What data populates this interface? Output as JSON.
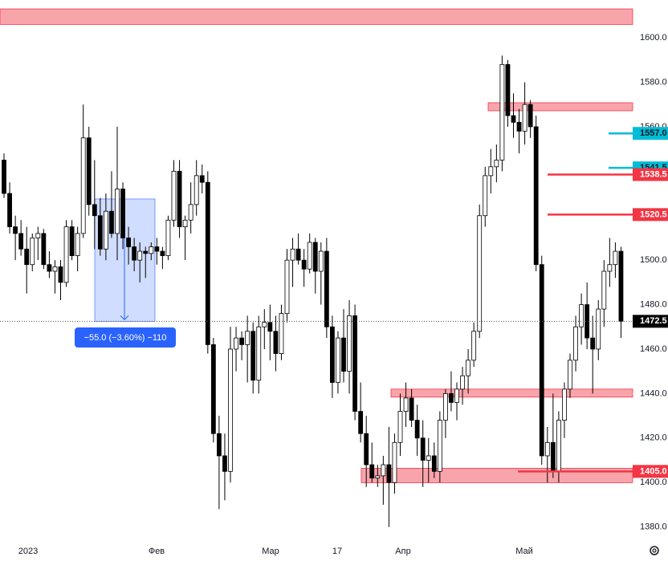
{
  "chart_data": {
    "type": "candlestick",
    "ylim": [
      1373,
      1617
    ],
    "yticks": [
      {
        "value": 1380,
        "label": "1380.0"
      },
      {
        "value": 1400,
        "label": "1400.0"
      },
      {
        "value": 1420,
        "label": "1420.0"
      },
      {
        "value": 1440,
        "label": "1440.0"
      },
      {
        "value": 1460,
        "label": "1460.0"
      },
      {
        "value": 1480,
        "label": "1480.0"
      },
      {
        "value": 1500,
        "label": "1500.0"
      },
      {
        "value": 1520,
        "label": "1520.0"
      },
      {
        "value": 1540,
        "label": "1540.0"
      },
      {
        "value": 1560,
        "label": "1560.0"
      },
      {
        "value": 1580,
        "label": "1580.0"
      },
      {
        "value": 1600,
        "label": "1600.0"
      }
    ],
    "x_labels": [
      "2023",
      "Фев",
      "Мар",
      "17",
      "Апр",
      "Май"
    ],
    "up_color": "#ffffff",
    "down_color": "#000000",
    "candles": [
      [
        1545,
        1548,
        1528,
        1530
      ],
      [
        1530,
        1535,
        1512,
        1515
      ],
      [
        1515,
        1520,
        1500,
        1512
      ],
      [
        1512,
        1518,
        1502,
        1505
      ],
      [
        1505,
        1515,
        1485,
        1498
      ],
      [
        1498,
        1512,
        1495,
        1510
      ],
      [
        1510,
        1515,
        1500,
        1512
      ],
      [
        1512,
        1514,
        1496,
        1498
      ],
      [
        1498,
        1504,
        1492,
        1495
      ],
      [
        1495,
        1500,
        1485,
        1497
      ],
      [
        1497,
        1500,
        1482,
        1490
      ],
      [
        1490,
        1518,
        1488,
        1515
      ],
      [
        1515,
        1518,
        1500,
        1502
      ],
      [
        1502,
        1515,
        1495,
        1512
      ],
      [
        1512,
        1570,
        1510,
        1555
      ],
      [
        1555,
        1560,
        1520,
        1525
      ],
      [
        1525,
        1545,
        1505,
        1520
      ],
      [
        1520,
        1528,
        1502,
        1505
      ],
      [
        1505,
        1530,
        1500,
        1522
      ],
      [
        1522,
        1540,
        1510,
        1512
      ],
      [
        1512,
        1560,
        1500,
        1532
      ],
      [
        1532,
        1535,
        1505,
        1510
      ],
      [
        1510,
        1515,
        1498,
        1506
      ],
      [
        1506,
        1510,
        1495,
        1500
      ],
      [
        1500,
        1508,
        1490,
        1504
      ],
      [
        1504,
        1506,
        1492,
        1503
      ],
      [
        1503,
        1508,
        1500,
        1506
      ],
      [
        1506,
        1510,
        1498,
        1504
      ],
      [
        1504,
        1506,
        1496,
        1502
      ],
      [
        1502,
        1520,
        1500,
        1518
      ],
      [
        1518,
        1545,
        1515,
        1540
      ],
      [
        1540,
        1545,
        1510,
        1515
      ],
      [
        1515,
        1520,
        1500,
        1518
      ],
      [
        1518,
        1535,
        1512,
        1525
      ],
      [
        1525,
        1545,
        1520,
        1538
      ],
      [
        1538,
        1543,
        1530,
        1535
      ],
      [
        1535,
        1540,
        1458,
        1462
      ],
      [
        1462,
        1465,
        1418,
        1422
      ],
      [
        1422,
        1430,
        1388,
        1412
      ],
      [
        1412,
        1422,
        1392,
        1405
      ],
      [
        1405,
        1470,
        1400,
        1460
      ],
      [
        1460,
        1470,
        1450,
        1465
      ],
      [
        1465,
        1468,
        1455,
        1462
      ],
      [
        1462,
        1475,
        1445,
        1468
      ],
      [
        1468,
        1472,
        1440,
        1446
      ],
      [
        1446,
        1475,
        1440,
        1470
      ],
      [
        1470,
        1478,
        1460,
        1472
      ],
      [
        1472,
        1480,
        1455,
        1468
      ],
      [
        1468,
        1475,
        1450,
        1458
      ],
      [
        1458,
        1480,
        1455,
        1476
      ],
      [
        1476,
        1505,
        1472,
        1500
      ],
      [
        1500,
        1510,
        1488,
        1505
      ],
      [
        1505,
        1512,
        1498,
        1500
      ],
      [
        1500,
        1505,
        1488,
        1496
      ],
      [
        1496,
        1512,
        1494,
        1508
      ],
      [
        1508,
        1510,
        1485,
        1495
      ],
      [
        1495,
        1508,
        1480,
        1504
      ],
      [
        1504,
        1510,
        1465,
        1470
      ],
      [
        1470,
        1475,
        1438,
        1445
      ],
      [
        1445,
        1468,
        1440,
        1465
      ],
      [
        1465,
        1478,
        1445,
        1450
      ],
      [
        1450,
        1482,
        1440,
        1475
      ],
      [
        1475,
        1480,
        1428,
        1432
      ],
      [
        1432,
        1445,
        1418,
        1422
      ],
      [
        1422,
        1430,
        1398,
        1408
      ],
      [
        1408,
        1418,
        1400,
        1402
      ],
      [
        1402,
        1408,
        1398,
        1403
      ],
      [
        1403,
        1412,
        1390,
        1408
      ],
      [
        1408,
        1425,
        1380,
        1400
      ],
      [
        1400,
        1422,
        1395,
        1418
      ],
      [
        1418,
        1440,
        1412,
        1432
      ],
      [
        1432,
        1445,
        1425,
        1438
      ],
      [
        1438,
        1442,
        1425,
        1428
      ],
      [
        1428,
        1435,
        1412,
        1420
      ],
      [
        1420,
        1428,
        1398,
        1410
      ],
      [
        1410,
        1420,
        1400,
        1412
      ],
      [
        1412,
        1418,
        1402,
        1405
      ],
      [
        1405,
        1432,
        1400,
        1428
      ],
      [
        1428,
        1442,
        1420,
        1440
      ],
      [
        1440,
        1450,
        1432,
        1436
      ],
      [
        1436,
        1445,
        1428,
        1442
      ],
      [
        1442,
        1452,
        1435,
        1448
      ],
      [
        1448,
        1460,
        1440,
        1455
      ],
      [
        1455,
        1472,
        1452,
        1468
      ],
      [
        1468,
        1525,
        1465,
        1520
      ],
      [
        1520,
        1542,
        1515,
        1538
      ],
      [
        1538,
        1550,
        1530,
        1542
      ],
      [
        1542,
        1552,
        1535,
        1545
      ],
      [
        1545,
        1592,
        1540,
        1588
      ],
      [
        1588,
        1590,
        1560,
        1565
      ],
      [
        1565,
        1575,
        1555,
        1562
      ],
      [
        1562,
        1568,
        1548,
        1558
      ],
      [
        1558,
        1580,
        1552,
        1570
      ],
      [
        1570,
        1572,
        1555,
        1560
      ],
      [
        1560,
        1565,
        1495,
        1498
      ],
      [
        1498,
        1502,
        1408,
        1412
      ],
      [
        1412,
        1425,
        1400,
        1418
      ],
      [
        1418,
        1440,
        1402,
        1405
      ],
      [
        1405,
        1432,
        1400,
        1428
      ],
      [
        1428,
        1445,
        1420,
        1442
      ],
      [
        1442,
        1458,
        1438,
        1455
      ],
      [
        1455,
        1475,
        1450,
        1470
      ],
      [
        1470,
        1485,
        1462,
        1480
      ],
      [
        1480,
        1490,
        1460,
        1465
      ],
      [
        1465,
        1475,
        1440,
        1460
      ],
      [
        1460,
        1482,
        1455,
        1478
      ],
      [
        1478,
        1500,
        1470,
        1495
      ],
      [
        1495,
        1510,
        1488,
        1498
      ],
      [
        1498,
        1508,
        1492,
        1504
      ],
      [
        1504,
        1506,
        1465,
        1472.5
      ]
    ],
    "zones": [
      [
        1606,
        1613
      ],
      [
        1567.2,
        1570.8
      ],
      [
        1438.4,
        1442
      ],
      [
        1399.9,
        1406.4
      ]
    ],
    "levels": [
      {
        "value": 1557,
        "label": "1557.0",
        "color": "#00bcd4"
      },
      {
        "value": 1541.5,
        "label": "1541.5",
        "color": "#00bcd4"
      },
      {
        "value": 1538.5,
        "label": "1538.5",
        "color": "#f23645"
      },
      {
        "value": 1520.5,
        "label": "1520.5",
        "color": "#f23645"
      },
      {
        "value": 1405,
        "label": "1405.0",
        "color": "#f23645"
      },
      {
        "value": 1472.5,
        "label": "1472.5",
        "color": "#000000"
      }
    ],
    "measure": {
      "from": 1527.5,
      "to": 1472.5,
      "label": "−55.0 (−3.60%) −110"
    }
  }
}
